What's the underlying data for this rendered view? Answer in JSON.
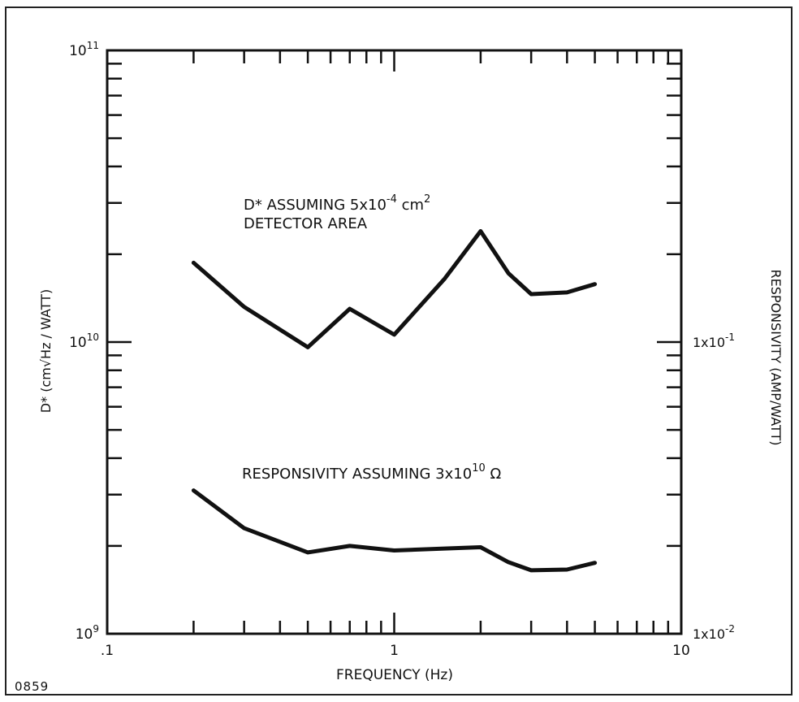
{
  "figure_id": "0859",
  "chart_data": {
    "type": "line",
    "xlabel": "FREQUENCY (Hz)",
    "ylabel_left": "D* (cm√Hz / WATT)",
    "ylabel_right": "RESPONSIVITY (AMP/WATT)",
    "x_scale": "log",
    "y_scale": "log",
    "xlim": [
      0.1,
      10
    ],
    "ylim_left": [
      1000000000.0,
      100000000000.0
    ],
    "ylim_right": [
      0.01,
      1
    ],
    "x_tick_labels": [
      ".1",
      "1",
      "10"
    ],
    "y_left_tick_labels": [
      {
        "base": "10",
        "exp": "11"
      },
      {
        "base": "10",
        "exp": "10"
      },
      {
        "base": "10",
        "exp": "9"
      }
    ],
    "y_right_tick_labels": [
      {
        "base": "1x10",
        "exp": "-1"
      },
      {
        "base": "1x10",
        "exp": "-2"
      }
    ],
    "grid": false,
    "series": [
      {
        "label_lines": [
          "D* ASSUMING 5x10^-4 cm^2",
          "DETECTOR AREA"
        ],
        "axis": "left",
        "color": "#111111",
        "points": [
          [
            0.2,
            18700000000.0
          ],
          [
            0.3,
            13200000000.0
          ],
          [
            0.5,
            9600000000.0
          ],
          [
            0.7,
            13000000000.0
          ],
          [
            1.0,
            10600000000.0
          ],
          [
            1.5,
            16500000000.0
          ],
          [
            2.0,
            24000000000.0
          ],
          [
            2.5,
            17200000000.0
          ],
          [
            3.0,
            14600000000.0
          ],
          [
            4.0,
            14800000000.0
          ],
          [
            5.0,
            15800000000.0
          ]
        ]
      },
      {
        "label_lines": [
          "RESPONSIVITY ASSUMING 3x10^10 Ω"
        ],
        "axis": "left",
        "color": "#111111",
        "points": [
          [
            0.2,
            3100000000.0
          ],
          [
            0.3,
            2300000000.0
          ],
          [
            0.5,
            1900000000.0
          ],
          [
            0.7,
            2000000000.0
          ],
          [
            1.0,
            1930000000.0
          ],
          [
            1.5,
            1960000000.0
          ],
          [
            2.0,
            1980000000.0
          ],
          [
            2.5,
            1760000000.0
          ],
          [
            3.0,
            1650000000.0
          ],
          [
            4.0,
            1660000000.0
          ],
          [
            5.0,
            1750000000.0
          ]
        ]
      }
    ]
  }
}
